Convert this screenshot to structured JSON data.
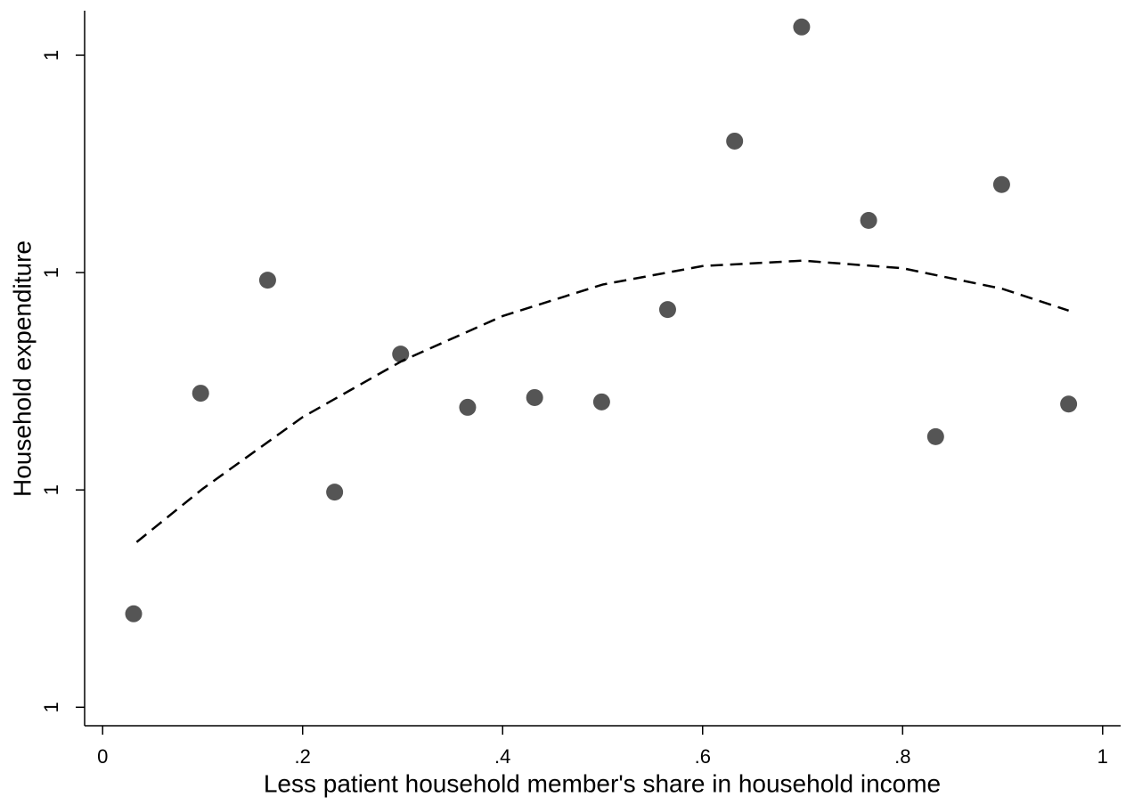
{
  "chart_data": {
    "type": "scatter",
    "x_label": "Less patient household member's share in household income",
    "y_label": "Household expenditure",
    "xlim": [
      -0.018,
      1.018
    ],
    "ylim": [
      0.583,
      1.241
    ],
    "xticks": [
      0,
      {
        "value": 0.2,
        "label": ".2"
      },
      {
        "value": 0.4,
        "label": ".4"
      },
      {
        "value": 0.6,
        "label": ".6"
      },
      {
        "value": 0.8,
        "label": ".8"
      },
      1
    ],
    "yticks": [
      {
        "value": 0.6,
        "label": "1"
      },
      {
        "value": 0.8,
        "label": "1"
      },
      {
        "value": 1.0,
        "label": "1"
      },
      {
        "value": 1.2,
        "label": "1"
      }
    ],
    "grid": false,
    "series": [
      {
        "type": "scatter",
        "color": "#555555",
        "x": [
          0.031,
          0.098,
          0.165,
          0.232,
          0.298,
          0.365,
          0.432,
          0.499,
          0.565,
          0.632,
          0.699,
          0.766,
          0.833,
          0.899,
          0.966
        ],
        "values": [
          0.686,
          0.889,
          0.993,
          0.798,
          0.925,
          0.876,
          0.885,
          0.881,
          0.966,
          1.121,
          1.226,
          1.048,
          0.849,
          1.081,
          0.879
        ]
      },
      {
        "type": "line",
        "color": "#000000",
        "dashed": true,
        "x": [
          0.034,
          0.1,
          0.2,
          0.3,
          0.4,
          0.5,
          0.6,
          0.7,
          0.8,
          0.9,
          0.966
        ],
        "values": [
          0.752,
          0.801,
          0.867,
          0.919,
          0.96,
          0.989,
          1.006,
          1.011,
          1.004,
          0.985,
          0.965
        ]
      }
    ]
  }
}
